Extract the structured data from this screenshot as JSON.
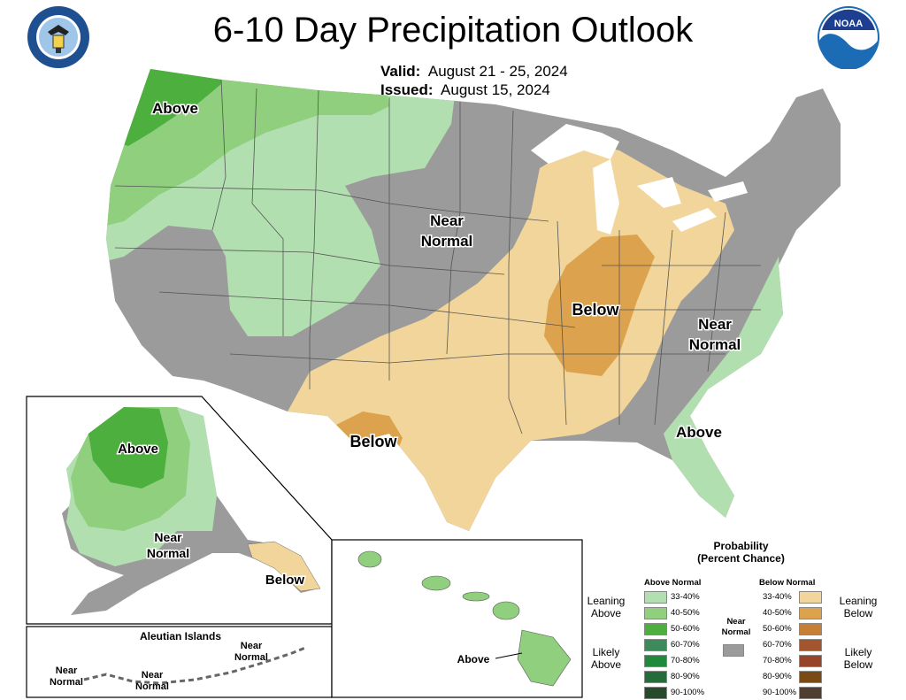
{
  "header": {
    "title": "6-10 Day Precipitation Outlook",
    "valid_label": "Valid:",
    "valid_value": "August 21 - 25, 2024",
    "issued_label": "Issued:",
    "issued_value": "August 15, 2024",
    "left_logo": "department-of-commerce-seal",
    "right_logo": "noaa-logo",
    "noaa_text": "NOAA"
  },
  "map": {
    "conus_labels": [
      "Above",
      "Near",
      "Normal",
      "Below",
      "Near",
      "Normal",
      "Below",
      "Above"
    ],
    "alaska_labels": [
      "Above",
      "Near",
      "Normal",
      "Below"
    ],
    "aleutian_title": "Aleutian Islands",
    "aleutian_labels": [
      "Near",
      "Normal",
      "Near",
      "Normal",
      "Near",
      "Normal"
    ],
    "hawaii_label": "Above"
  },
  "colors": {
    "near_normal": "#9b9b9b",
    "above_33_40": "#b2dfaf",
    "above_40_50": "#8fcf7e",
    "above_50_60": "#4caf3e",
    "below_33_40": "#f2d59a",
    "below_40_50": "#dca24d",
    "below_50_60": "#c77f35"
  },
  "legend": {
    "title_line1": "Probability",
    "title_line2": "(Percent Chance)",
    "above_header": "Above Normal",
    "below_header": "Below Normal",
    "near_label_1": "Near",
    "near_label_2": "Normal",
    "leaning_above_1": "Leaning",
    "leaning_above_2": "Above",
    "likely_above_1": "Likely",
    "likely_above_2": "Above",
    "leaning_below_1": "Leaning",
    "leaning_below_2": "Below",
    "likely_below_1": "Likely",
    "likely_below_2": "Below",
    "above_rows": [
      {
        "label": "33-40%",
        "color": "#b2dfaf"
      },
      {
        "label": "40-50%",
        "color": "#8fcf7e"
      },
      {
        "label": "50-60%",
        "color": "#4caf3e"
      },
      {
        "label": "60-70%",
        "color": "#3d8a5a"
      },
      {
        "label": "70-80%",
        "color": "#1f8a3c"
      },
      {
        "label": "80-90%",
        "color": "#266b3a"
      },
      {
        "label": "90-100%",
        "color": "#274a2d"
      }
    ],
    "below_rows": [
      {
        "label": "33-40%",
        "color": "#f2d59a"
      },
      {
        "label": "40-50%",
        "color": "#dca24d"
      },
      {
        "label": "50-60%",
        "color": "#c77f35"
      },
      {
        "label": "60-70%",
        "color": "#a3552d"
      },
      {
        "label": "70-80%",
        "color": "#96442a"
      },
      {
        "label": "80-90%",
        "color": "#7a4a16"
      },
      {
        "label": "90-100%",
        "color": "#4f3f31"
      }
    ]
  }
}
